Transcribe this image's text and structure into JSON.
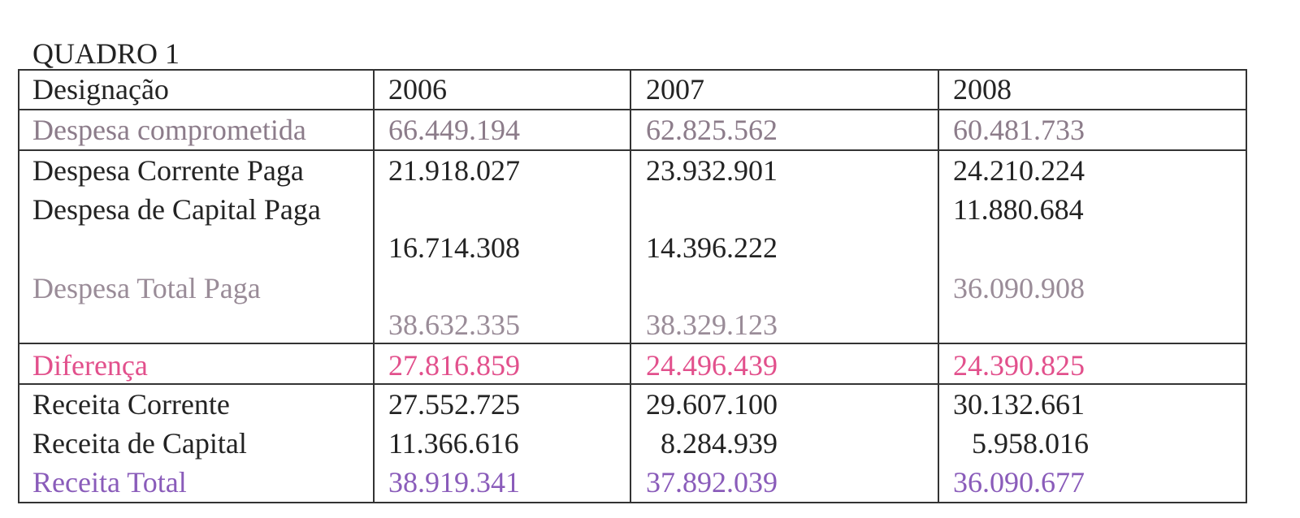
{
  "title": "QUADRO 1",
  "table": {
    "header": [
      "Designação",
      "2006",
      "2007",
      "2008"
    ],
    "rows": [
      [
        "Despesa comprometida",
        "66.449.194",
        "62.825.562",
        "60.481.733"
      ],
      [
        "Despesa Corrente Paga",
        "21.918.027",
        "23.932.901",
        "24.210.224"
      ],
      [
        "Despesa de Capital Paga",
        "16.714.308",
        "14.396.222",
        "11.880.684"
      ],
      [
        "Despesa Total Paga",
        "38.632.335",
        "38.329.123",
        "36.090.908"
      ],
      [
        "Diferença",
        "27.816.859",
        "24.496.439",
        "24.390.825"
      ],
      [
        "Receita Corrente",
        "27.552.725",
        "29.607.100",
        "30.132.661"
      ],
      [
        "Receita de Capital",
        "11.366.616",
        "8.284.939",
        "5.958.016"
      ],
      [
        "Receita Total",
        "38.919.341",
        "37.892.039",
        "36.090.677"
      ]
    ]
  }
}
